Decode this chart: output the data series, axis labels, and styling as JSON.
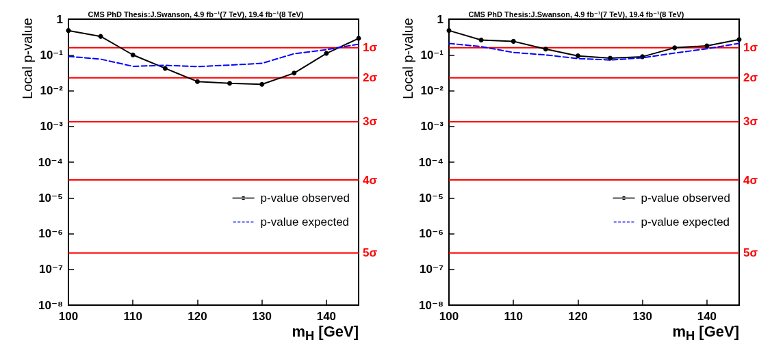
{
  "chart_data": [
    {
      "type": "line",
      "title": "CMS PhD Thesis:J.Swanson, 4.9 fb⁻¹(7 TeV), 19.4 fb⁻¹(8 TeV)",
      "xlabel": "m$_{H}$ [GeV]",
      "ylabel": "Local p-value",
      "x": [
        100,
        105,
        110,
        115,
        120,
        125,
        130,
        135,
        140,
        145
      ],
      "series": [
        {
          "name": "p-value observed",
          "color": "#000000",
          "marker": "circle",
          "line_style": "solid",
          "values": [
            0.48,
            0.33,
            0.1,
            0.042,
            0.018,
            0.016,
            0.015,
            0.031,
            0.11,
            0.29
          ]
        },
        {
          "name": "p-value expected",
          "color": "#0000ff",
          "marker": "none",
          "line_style": "dashed",
          "values": [
            0.091,
            0.076,
            0.048,
            0.051,
            0.047,
            0.052,
            0.058,
            0.108,
            0.14,
            0.2
          ]
        }
      ],
      "xlim": [
        100,
        145
      ],
      "xticks": [
        100,
        110,
        120,
        130,
        140
      ],
      "ylim": [
        1e-08,
        1
      ],
      "log": "y",
      "yticks": [
        {
          "value": 1e-08,
          "label": "10⁻⁸"
        },
        {
          "value": 1e-07,
          "label": "10⁻⁷"
        },
        {
          "value": 1e-06,
          "label": "10⁻⁶"
        },
        {
          "value": 1e-05,
          "label": "10⁻⁵"
        },
        {
          "value": 0.0001,
          "label": "10⁻⁴"
        },
        {
          "value": 0.001,
          "label": "10⁻³"
        },
        {
          "value": 0.01,
          "label": "10⁻²"
        },
        {
          "value": 0.1,
          "label": "10⁻¹"
        },
        1
      ],
      "ref_lines": [
        {
          "axis": "y",
          "value": 0.159,
          "label": "1σ",
          "color": "#ff0000"
        },
        {
          "axis": "y",
          "value": 0.0228,
          "label": "2σ",
          "color": "#ff0000"
        },
        {
          "axis": "y",
          "value": 0.00135,
          "label": "3σ",
          "color": "#ff0000"
        },
        {
          "axis": "y",
          "value": 3.17e-05,
          "label": "4σ",
          "color": "#ff0000"
        },
        {
          "axis": "y",
          "value": 2.87e-07,
          "label": "5σ",
          "color": "#ff0000"
        }
      ],
      "legend": "right"
    },
    {
      "type": "line",
      "title": "CMS PhD Thesis:J.Swanson, 4.9 fb⁻¹(7 TeV), 19.4 fb⁻¹(8 TeV)",
      "xlabel": "m$_{H}$ [GeV]",
      "ylabel": "Local p-value",
      "x": [
        100,
        105,
        110,
        115,
        120,
        125,
        130,
        135,
        140,
        145
      ],
      "series": [
        {
          "name": "p-value observed",
          "color": "#000000",
          "marker": "circle",
          "line_style": "solid",
          "values": [
            0.48,
            0.26,
            0.24,
            0.145,
            0.094,
            0.081,
            0.089,
            0.158,
            0.18,
            0.27
          ]
        },
        {
          "name": "p-value expected",
          "color": "#0000ff",
          "marker": "none",
          "line_style": "dashed",
          "values": [
            0.21,
            0.17,
            0.117,
            0.1,
            0.079,
            0.072,
            0.083,
            0.113,
            0.148,
            0.21
          ]
        }
      ],
      "xlim": [
        100,
        145
      ],
      "xticks": [
        100,
        110,
        120,
        130,
        140
      ],
      "ylim": [
        1e-08,
        1
      ],
      "log": "y",
      "yticks": [
        {
          "value": 1e-08,
          "label": "10⁻⁸"
        },
        {
          "value": 1e-07,
          "label": "10⁻⁷"
        },
        {
          "value": 1e-06,
          "label": "10⁻⁶"
        },
        {
          "value": 1e-05,
          "label": "10⁻⁵"
        },
        {
          "value": 0.0001,
          "label": "10⁻⁴"
        },
        {
          "value": 0.001,
          "label": "10⁻³"
        },
        {
          "value": 0.01,
          "label": "10⁻²"
        },
        {
          "value": 0.1,
          "label": "10⁻¹"
        },
        1
      ],
      "ref_lines": [
        {
          "axis": "y",
          "value": 0.159,
          "label": "1σ",
          "color": "#ff0000"
        },
        {
          "axis": "y",
          "value": 0.0228,
          "label": "2σ",
          "color": "#ff0000"
        },
        {
          "axis": "y",
          "value": 0.00135,
          "label": "3σ",
          "color": "#ff0000"
        },
        {
          "axis": "y",
          "value": 3.17e-05,
          "label": "4σ",
          "color": "#ff0000"
        },
        {
          "axis": "y",
          "value": 2.87e-07,
          "label": "5σ",
          "color": "#ff0000"
        }
      ],
      "legend": "right"
    }
  ]
}
